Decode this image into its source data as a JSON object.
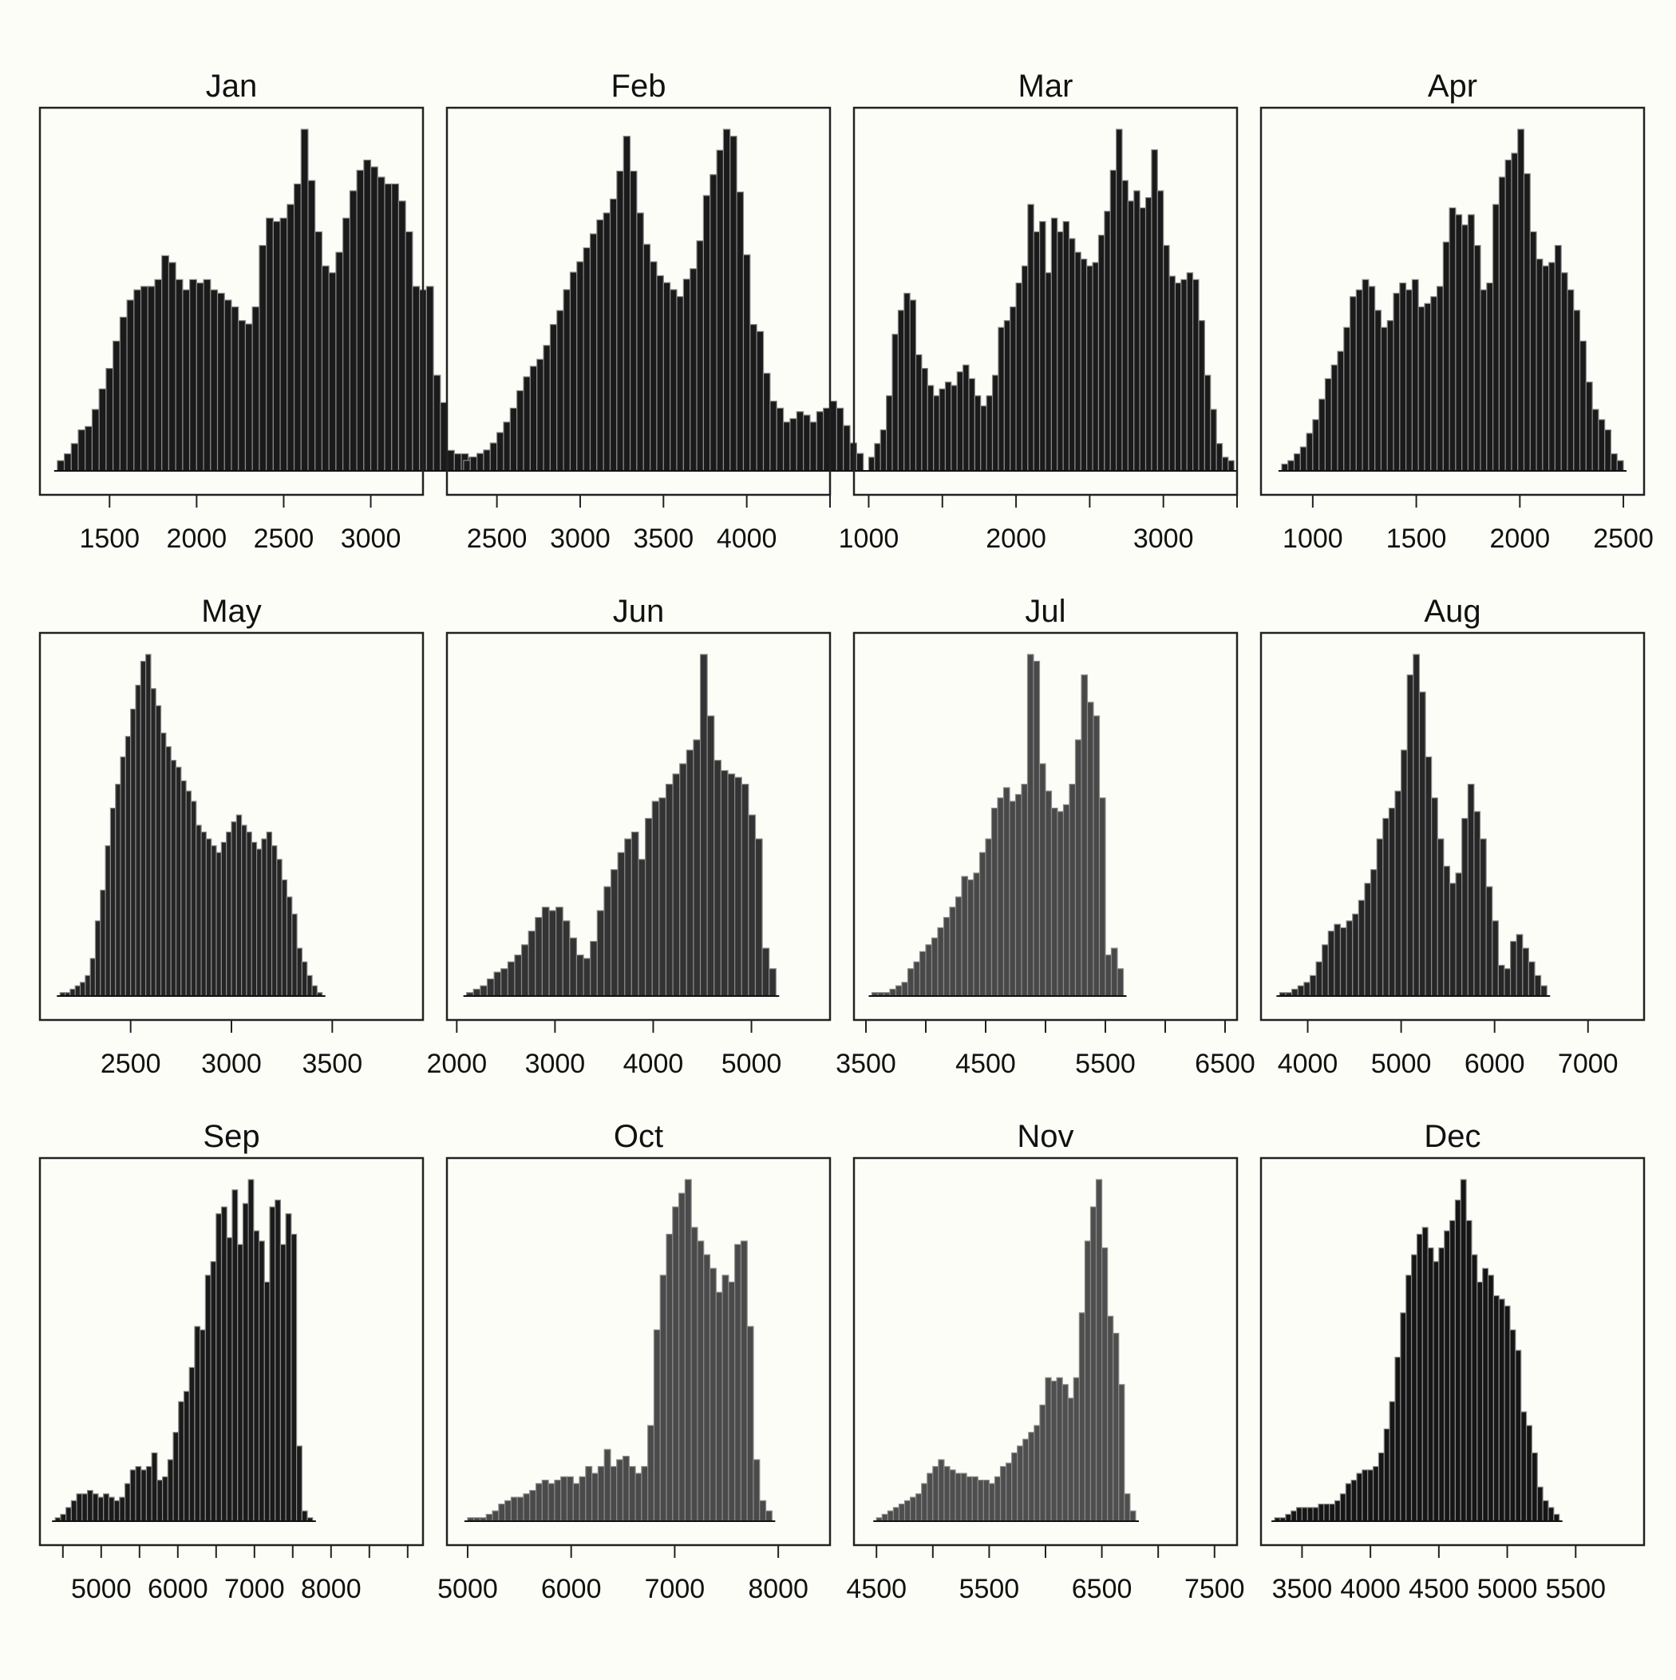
{
  "chart_data": [
    {
      "type": "bar",
      "title": "Jan",
      "x_range": [
        1100,
        3300
      ],
      "xticks": [
        1500,
        2000,
        2500,
        3000
      ],
      "x_label_ticks": [
        1500,
        2000,
        2500,
        3000
      ],
      "bin_start": 1200,
      "bin_width": 40,
      "bar_color": "#1a1a1a",
      "values": [
        0.03,
        0.05,
        0.08,
        0.12,
        0.13,
        0.18,
        0.24,
        0.3,
        0.38,
        0.45,
        0.5,
        0.53,
        0.54,
        0.54,
        0.56,
        0.63,
        0.61,
        0.56,
        0.53,
        0.56,
        0.55,
        0.56,
        0.53,
        0.52,
        0.5,
        0.48,
        0.44,
        0.43,
        0.48,
        0.66,
        0.74,
        0.73,
        0.74,
        0.78,
        0.84,
        1.0,
        0.85,
        0.7,
        0.6,
        0.58,
        0.64,
        0.74,
        0.82,
        0.88,
        0.91,
        0.89,
        0.86,
        0.84,
        0.84,
        0.79,
        0.7,
        0.54,
        0.53,
        0.54,
        0.28,
        0.2,
        0.06,
        0.05,
        0.05,
        0.04,
        0.03
      ]
    },
    {
      "type": "bar",
      "title": "Feb",
      "x_range": [
        2200,
        4500
      ],
      "xticks": [
        2500,
        3000,
        3500,
        4000,
        4500
      ],
      "x_label_ticks": [
        2500,
        3000,
        3500,
        4000
      ],
      "bin_start": 2300,
      "bin_width": 40,
      "bar_color": "#1a1a1a",
      "values": [
        0.03,
        0.04,
        0.05,
        0.06,
        0.08,
        0.11,
        0.14,
        0.18,
        0.23,
        0.27,
        0.3,
        0.32,
        0.36,
        0.42,
        0.46,
        0.52,
        0.57,
        0.6,
        0.64,
        0.68,
        0.72,
        0.74,
        0.78,
        0.86,
        0.96,
        0.86,
        0.74,
        0.65,
        0.6,
        0.56,
        0.54,
        0.52,
        0.5,
        0.55,
        0.58,
        0.66,
        0.79,
        0.85,
        0.92,
        0.98,
        0.96,
        0.8,
        0.62,
        0.42,
        0.4,
        0.28,
        0.2,
        0.18,
        0.14,
        0.15,
        0.17,
        0.16,
        0.14,
        0.17,
        0.18,
        0.2,
        0.18,
        0.13,
        0.08,
        0.05
      ]
    },
    {
      "type": "bar",
      "title": "Mar",
      "x_range": [
        900,
        3500
      ],
      "xticks": [
        1000,
        1500,
        2000,
        2500,
        3000,
        3500
      ],
      "x_label_ticks": [
        1000,
        2000,
        3000
      ],
      "bin_start": 1000,
      "bin_width": 40,
      "bar_color": "#1a1a1a",
      "values": [
        0.04,
        0.08,
        0.12,
        0.22,
        0.4,
        0.47,
        0.52,
        0.5,
        0.34,
        0.3,
        0.25,
        0.22,
        0.24,
        0.26,
        0.25,
        0.29,
        0.31,
        0.27,
        0.22,
        0.19,
        0.22,
        0.28,
        0.42,
        0.44,
        0.48,
        0.55,
        0.6,
        0.78,
        0.7,
        0.73,
        0.58,
        0.74,
        0.7,
        0.73,
        0.68,
        0.64,
        0.62,
        0.6,
        0.61,
        0.69,
        0.76,
        0.88,
        1.0,
        0.85,
        0.79,
        0.82,
        0.77,
        0.8,
        0.94,
        0.82,
        0.66,
        0.57,
        0.55,
        0.56,
        0.58,
        0.56,
        0.44,
        0.28,
        0.18,
        0.08,
        0.04,
        0.03
      ]
    },
    {
      "type": "bar",
      "title": "Apr",
      "x_range": [
        750,
        2600
      ],
      "xticks": [
        1000,
        1500,
        2000,
        2500
      ],
      "x_label_ticks": [
        1000,
        1500,
        2000,
        2500
      ],
      "bin_start": 850,
      "bin_width": 30,
      "bar_color": "#1a1a1a",
      "values": [
        0.02,
        0.03,
        0.05,
        0.07,
        0.11,
        0.15,
        0.21,
        0.27,
        0.31,
        0.35,
        0.42,
        0.51,
        0.53,
        0.56,
        0.54,
        0.47,
        0.42,
        0.44,
        0.52,
        0.55,
        0.53,
        0.56,
        0.48,
        0.49,
        0.51,
        0.54,
        0.67,
        0.77,
        0.75,
        0.72,
        0.75,
        0.66,
        0.53,
        0.55,
        0.78,
        0.86,
        0.91,
        0.93,
        1.0,
        0.87,
        0.7,
        0.62,
        0.6,
        0.61,
        0.66,
        0.58,
        0.53,
        0.47,
        0.38,
        0.26,
        0.18,
        0.15,
        0.12,
        0.05,
        0.03
      ]
    },
    {
      "type": "bar",
      "title": "May",
      "x_range": [
        2050,
        3950
      ],
      "xticks": [
        2500,
        3000,
        3500
      ],
      "x_label_ticks": [
        2500,
        3000,
        3500
      ],
      "bin_start": 2150,
      "bin_width": 25,
      "bar_color": "#252525",
      "values": [
        0.01,
        0.01,
        0.02,
        0.03,
        0.04,
        0.06,
        0.11,
        0.22,
        0.31,
        0.44,
        0.55,
        0.62,
        0.7,
        0.76,
        0.84,
        0.91,
        0.98,
        1.0,
        0.9,
        0.85,
        0.77,
        0.73,
        0.69,
        0.67,
        0.63,
        0.6,
        0.57,
        0.5,
        0.48,
        0.46,
        0.44,
        0.42,
        0.45,
        0.48,
        0.51,
        0.53,
        0.5,
        0.48,
        0.45,
        0.43,
        0.46,
        0.48,
        0.44,
        0.4,
        0.34,
        0.29,
        0.24,
        0.14,
        0.1,
        0.06,
        0.03,
        0.01
      ]
    },
    {
      "type": "bar",
      "title": "Jun",
      "x_range": [
        1900,
        5800
      ],
      "xticks": [
        2000,
        3000,
        4000,
        5000
      ],
      "x_label_ticks": [
        2000,
        3000,
        4000,
        5000
      ],
      "bin_start": 2100,
      "bin_width": 70,
      "bar_color": "#333333",
      "values": [
        0.01,
        0.02,
        0.03,
        0.05,
        0.07,
        0.08,
        0.1,
        0.12,
        0.15,
        0.19,
        0.23,
        0.26,
        0.25,
        0.26,
        0.22,
        0.17,
        0.12,
        0.11,
        0.16,
        0.25,
        0.32,
        0.37,
        0.42,
        0.46,
        0.48,
        0.4,
        0.52,
        0.57,
        0.58,
        0.62,
        0.65,
        0.68,
        0.72,
        0.75,
        1.0,
        0.82,
        0.69,
        0.66,
        0.65,
        0.64,
        0.62,
        0.53,
        0.46,
        0.14,
        0.08
      ]
    },
    {
      "type": "bar",
      "title": "Jul",
      "x_range": [
        3400,
        6600
      ],
      "xticks": [
        3500,
        4000,
        4500,
        5000,
        5500,
        6000,
        6500
      ],
      "x_label_ticks": [
        3500,
        4500,
        5500,
        6500
      ],
      "bin_start": 3550,
      "bin_width": 50,
      "bar_color": "#484848",
      "values": [
        0.01,
        0.01,
        0.01,
        0.02,
        0.03,
        0.04,
        0.08,
        0.1,
        0.13,
        0.15,
        0.17,
        0.2,
        0.23,
        0.26,
        0.29,
        0.35,
        0.34,
        0.36,
        0.42,
        0.46,
        0.55,
        0.58,
        0.61,
        0.57,
        0.59,
        0.62,
        1.0,
        0.98,
        0.68,
        0.6,
        0.55,
        0.54,
        0.56,
        0.62,
        0.75,
        0.94,
        0.86,
        0.82,
        0.58,
        0.12,
        0.14,
        0.08
      ]
    },
    {
      "type": "bar",
      "title": "Aug",
      "x_range": [
        3500,
        7600
      ],
      "xticks": [
        4000,
        5000,
        6000,
        7000
      ],
      "x_label_ticks": [
        4000,
        5000,
        6000,
        7000
      ],
      "bin_start": 3700,
      "bin_width": 65,
      "bar_color": "#262626",
      "values": [
        0.01,
        0.01,
        0.02,
        0.03,
        0.04,
        0.06,
        0.1,
        0.15,
        0.19,
        0.21,
        0.2,
        0.22,
        0.24,
        0.28,
        0.33,
        0.37,
        0.46,
        0.52,
        0.55,
        0.6,
        0.72,
        0.94,
        1.0,
        0.89,
        0.7,
        0.58,
        0.46,
        0.38,
        0.33,
        0.36,
        0.52,
        0.62,
        0.54,
        0.46,
        0.32,
        0.22,
        0.09,
        0.08,
        0.16,
        0.18,
        0.14,
        0.1,
        0.06,
        0.03
      ]
    },
    {
      "type": "bar",
      "title": "Sep",
      "x_range": [
        4200,
        9200
      ],
      "xticks": [
        4500,
        5000,
        5500,
        6000,
        6500,
        7000,
        7500,
        8000,
        8500,
        9000
      ],
      "x_label_ticks": [
        5000,
        6000,
        7000,
        8000
      ],
      "bin_start": 4400,
      "bin_width": 70,
      "bar_color": "#1a1a1a",
      "values": [
        0.01,
        0.02,
        0.04,
        0.06,
        0.08,
        0.08,
        0.09,
        0.08,
        0.07,
        0.08,
        0.07,
        0.06,
        0.07,
        0.11,
        0.15,
        0.16,
        0.15,
        0.16,
        0.2,
        0.12,
        0.13,
        0.18,
        0.26,
        0.35,
        0.38,
        0.45,
        0.57,
        0.56,
        0.72,
        0.76,
        0.9,
        0.92,
        0.83,
        0.97,
        0.81,
        0.93,
        1.0,
        0.85,
        0.82,
        0.7,
        0.92,
        0.94,
        0.81,
        0.9,
        0.84,
        0.22,
        0.03,
        0.01
      ]
    },
    {
      "type": "bar",
      "title": "Oct",
      "x_range": [
        4800,
        8500
      ],
      "xticks": [
        5000,
        6000,
        7000,
        8000
      ],
      "x_label_ticks": [
        5000,
        6000,
        7000,
        8000
      ],
      "bin_start": 5000,
      "bin_width": 60,
      "bar_color": "#4a4a4a",
      "values": [
        0.01,
        0.01,
        0.01,
        0.02,
        0.03,
        0.05,
        0.06,
        0.07,
        0.07,
        0.08,
        0.09,
        0.11,
        0.12,
        0.11,
        0.12,
        0.13,
        0.13,
        0.11,
        0.13,
        0.16,
        0.14,
        0.16,
        0.21,
        0.16,
        0.18,
        0.19,
        0.16,
        0.14,
        0.16,
        0.28,
        0.56,
        0.72,
        0.84,
        0.92,
        0.96,
        1.0,
        0.86,
        0.82,
        0.78,
        0.74,
        0.67,
        0.72,
        0.7,
        0.81,
        0.82,
        0.57,
        0.18,
        0.06,
        0.03
      ]
    },
    {
      "type": "bar",
      "title": "Nov",
      "x_range": [
        4300,
        7700
      ],
      "xticks": [
        4500,
        5000,
        5500,
        6000,
        6500,
        7000,
        7500
      ],
      "x_label_ticks": [
        4500,
        5500,
        6500,
        7500
      ],
      "bin_start": 4500,
      "bin_width": 50,
      "bar_color": "#4e4e4e",
      "values": [
        0.01,
        0.02,
        0.03,
        0.04,
        0.05,
        0.06,
        0.07,
        0.08,
        0.11,
        0.14,
        0.16,
        0.18,
        0.16,
        0.15,
        0.14,
        0.14,
        0.13,
        0.13,
        0.12,
        0.12,
        0.11,
        0.13,
        0.16,
        0.17,
        0.2,
        0.22,
        0.24,
        0.26,
        0.28,
        0.34,
        0.42,
        0.41,
        0.42,
        0.4,
        0.36,
        0.42,
        0.61,
        0.82,
        0.92,
        1.0,
        0.8,
        0.6,
        0.55,
        0.4,
        0.08,
        0.03
      ]
    },
    {
      "type": "bar",
      "title": "Dec",
      "x_range": [
        3200,
        6000
      ],
      "xticks": [
        3500,
        4000,
        4500,
        5000,
        5500
      ],
      "x_label_ticks": [
        3500,
        4000,
        4500,
        5000,
        5500
      ],
      "bin_start": 3300,
      "bin_width": 40,
      "bar_color": "#151515",
      "values": [
        0.01,
        0.01,
        0.02,
        0.03,
        0.04,
        0.04,
        0.04,
        0.04,
        0.05,
        0.05,
        0.05,
        0.06,
        0.08,
        0.11,
        0.12,
        0.14,
        0.15,
        0.15,
        0.16,
        0.2,
        0.27,
        0.35,
        0.48,
        0.61,
        0.72,
        0.78,
        0.84,
        0.86,
        0.8,
        0.76,
        0.8,
        0.85,
        0.88,
        0.94,
        1.0,
        0.88,
        0.78,
        0.7,
        0.74,
        0.72,
        0.66,
        0.65,
        0.63,
        0.56,
        0.5,
        0.32,
        0.28,
        0.2,
        0.1,
        0.06,
        0.04,
        0.02
      ]
    }
  ]
}
